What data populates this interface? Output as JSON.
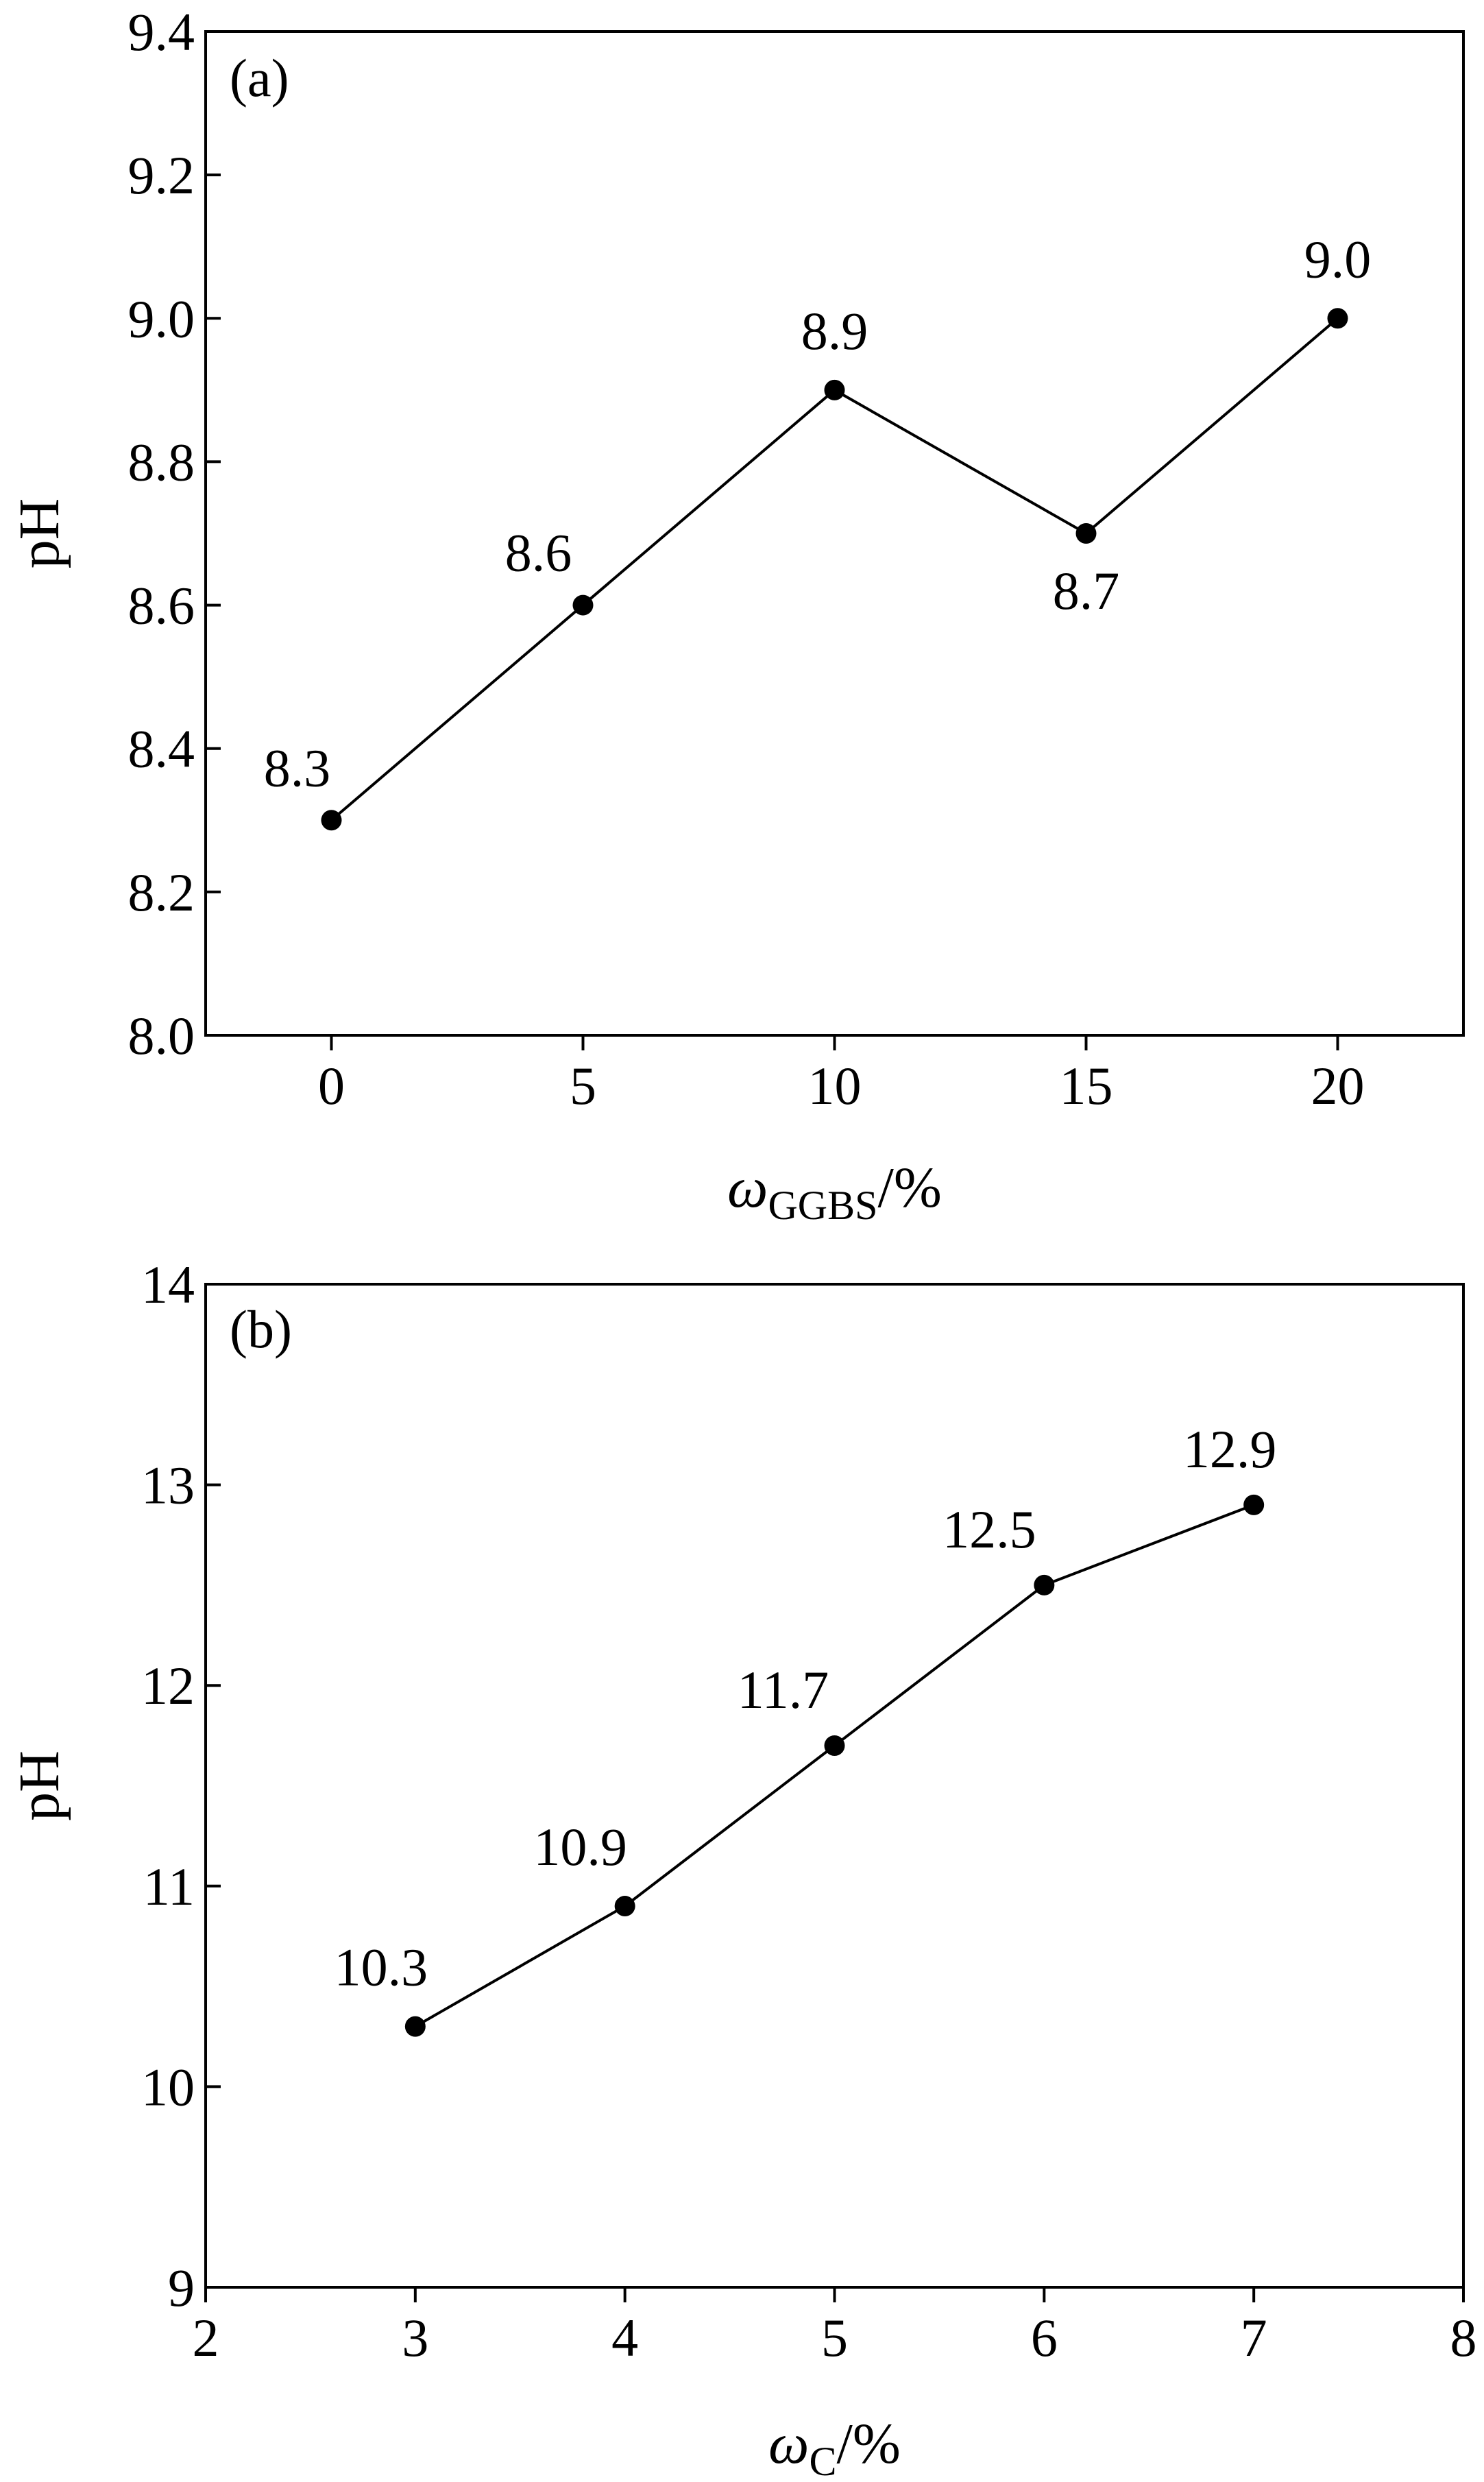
{
  "chart_data": [
    {
      "type": "line",
      "panel_label": "(a)",
      "x": [
        0,
        5,
        10,
        15,
        20
      ],
      "series": [
        {
          "values": [
            8.3,
            8.6,
            8.9,
            8.7,
            9.0
          ]
        }
      ],
      "data_labels": [
        "8.3",
        "8.6",
        "8.9",
        "8.7",
        "9.0"
      ],
      "xlabel": {
        "symbol": "ω",
        "subscript": "GGBS",
        "unit": "/%"
      },
      "ylabel": "pH",
      "xlim": [
        -2.5,
        22.5
      ],
      "ylim": [
        8.0,
        9.4
      ],
      "xticks": [
        0,
        5,
        10,
        15,
        20
      ],
      "xtick_labels": [
        "0",
        "5",
        "10",
        "15",
        "20"
      ],
      "yticks": [
        8.0,
        8.2,
        8.4,
        8.6,
        8.8,
        9.0,
        9.2,
        9.4
      ],
      "ytick_labels": [
        "8.0",
        "8.2",
        "8.4",
        "8.6",
        "8.8",
        "9.0",
        "9.2",
        "9.4"
      ],
      "grid": false,
      "color": "#000000"
    },
    {
      "type": "line",
      "panel_label": "(b)",
      "x": [
        3,
        4,
        5,
        6,
        7
      ],
      "series": [
        {
          "values": [
            10.3,
            10.9,
            11.7,
            12.5,
            12.9
          ]
        }
      ],
      "data_labels": [
        "10.3",
        "10.9",
        "11.7",
        "12.5",
        "12.9"
      ],
      "xlabel": {
        "symbol": "ω",
        "subscript": "C",
        "unit": "/%"
      },
      "ylabel": "pH",
      "xlim": [
        2,
        8
      ],
      "ylim": [
        9,
        14
      ],
      "xticks": [
        2,
        3,
        4,
        5,
        6,
        7,
        8
      ],
      "xtick_labels": [
        "2",
        "3",
        "4",
        "5",
        "6",
        "7",
        "8"
      ],
      "yticks": [
        9,
        10,
        11,
        12,
        13,
        14
      ],
      "ytick_labels": [
        "9",
        "10",
        "11",
        "12",
        "13",
        "14"
      ],
      "grid": false,
      "color": "#000000"
    }
  ]
}
